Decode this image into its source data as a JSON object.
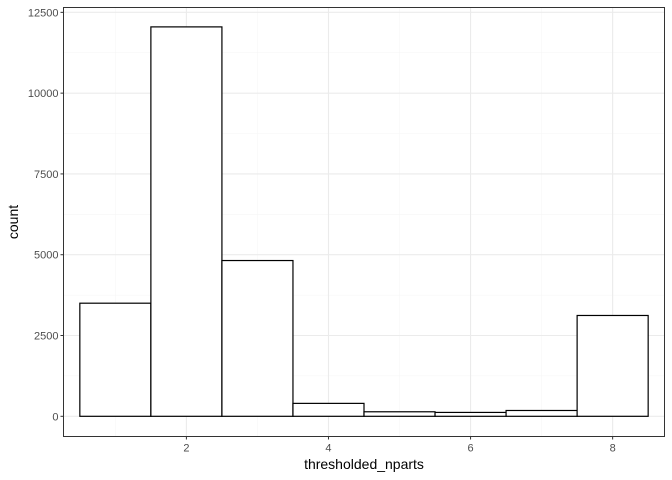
{
  "chart_data": {
    "type": "bar",
    "subtype": "histogram",
    "title": "",
    "xlabel": "thresholded_nparts",
    "ylabel": "count",
    "bins": [
      {
        "x": 1,
        "count": 3500
      },
      {
        "x": 2,
        "count": 12050
      },
      {
        "x": 3,
        "count": 4820
      },
      {
        "x": 4,
        "count": 400
      },
      {
        "x": 5,
        "count": 140
      },
      {
        "x": 6,
        "count": 120
      },
      {
        "x": 7,
        "count": 180
      },
      {
        "x": 8,
        "count": 3120
      }
    ],
    "bin_width": 1,
    "xlim": [
      0.27,
      8.73
    ],
    "ylim": [
      -625,
      12650
    ],
    "x_ticks": [
      2,
      4,
      6,
      8
    ],
    "y_ticks": [
      0,
      2500,
      5000,
      7500,
      10000,
      12500
    ],
    "x_tick_labels": [
      "2",
      "4",
      "6",
      "8"
    ],
    "y_tick_labels": [
      "0",
      "2500",
      "5000",
      "7500",
      "10000",
      "12500"
    ],
    "grid": true,
    "legend": "none",
    "bar_fill": "#ffffff",
    "bar_stroke": "#000000",
    "grid_major_color": "#ebebeb",
    "grid_minor_color": "#f5f5f5",
    "panel_border_color": "#333333"
  }
}
